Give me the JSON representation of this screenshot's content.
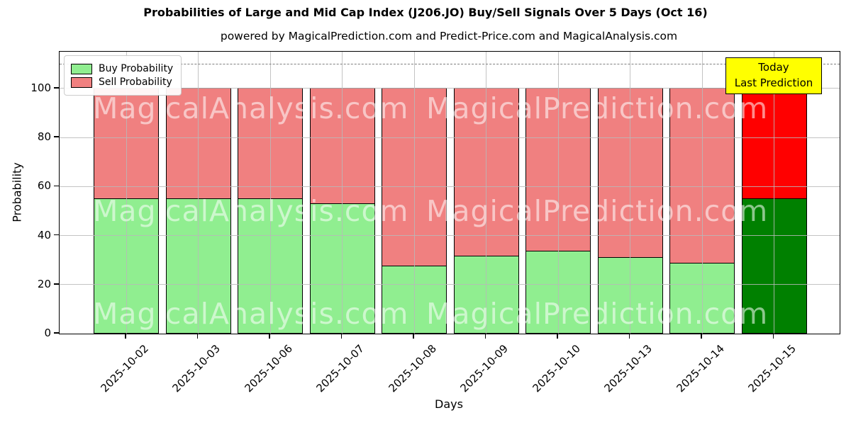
{
  "title": "Probabilities of Large and Mid Cap Index (J206.JO) Buy/Sell Signals Over 5 Days (Oct 16)",
  "subtitle": "powered by MagicalPrediction.com and Predict-Price.com and MagicalAnalysis.com",
  "legend": {
    "items": [
      {
        "label": "Buy Probability",
        "color": "#90ee90"
      },
      {
        "label": "Sell Probability",
        "color": "#f08080"
      }
    ]
  },
  "annotation": {
    "line1": "Today",
    "line2": "Last Prediction",
    "bg_color": "#ffff00"
  },
  "watermarks": [
    "MagicalAnalysis.com",
    "MagicalPrediction.com"
  ],
  "chart_data": {
    "type": "bar",
    "stacked": true,
    "title": "Probabilities of Large and Mid Cap Index (J206.JO) Buy/Sell Signals Over 5 Days (Oct 16)",
    "xlabel": "Days",
    "ylabel": "Probability",
    "categories": [
      "2025-10-02",
      "2025-10-03",
      "2025-10-06",
      "2025-10-07",
      "2025-10-08",
      "2025-10-09",
      "2025-10-10",
      "2025-10-13",
      "2025-10-14",
      "2025-10-15"
    ],
    "series": [
      {
        "name": "Buy Probability",
        "color": "#90ee90",
        "today_color": "#008000",
        "values": [
          55,
          55,
          55,
          53,
          27.5,
          31.5,
          33.5,
          31,
          28.5,
          55
        ]
      },
      {
        "name": "Sell Probability",
        "color": "#f08080",
        "today_color": "#ff0000",
        "values": [
          45,
          45,
          45,
          47,
          72.5,
          68.5,
          66.5,
          69,
          71.5,
          45
        ]
      }
    ],
    "today_index": 9,
    "ylim": [
      0,
      115
    ],
    "yticks": [
      0,
      20,
      40,
      60,
      80,
      100
    ],
    "grid": true,
    "legend_position": "upper left",
    "dashed_line_y": 110
  }
}
